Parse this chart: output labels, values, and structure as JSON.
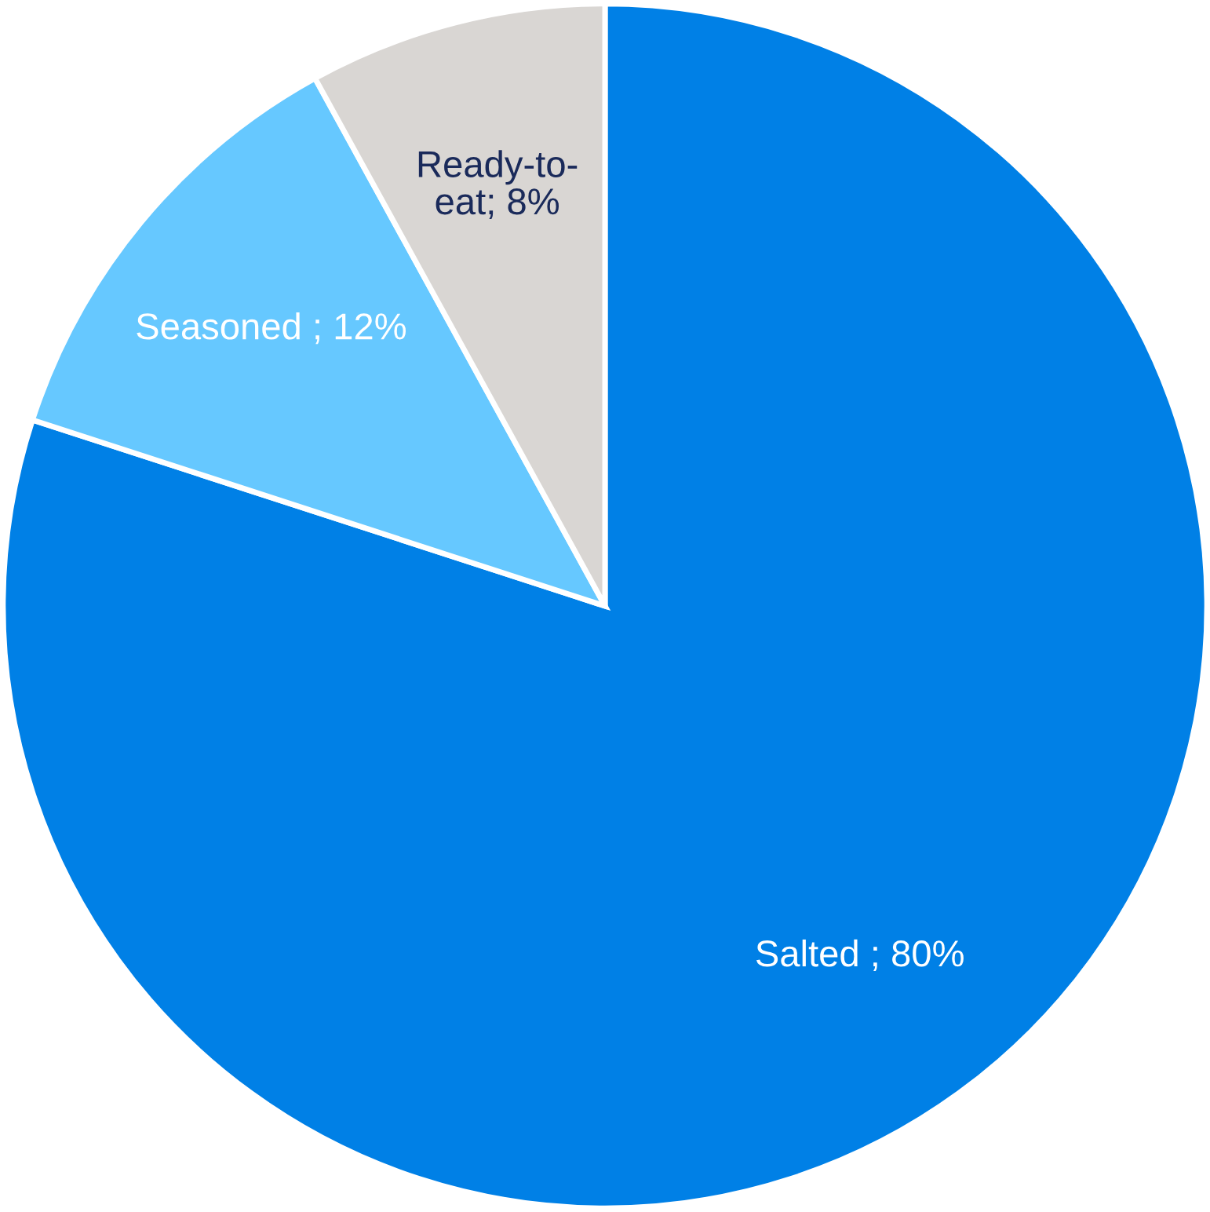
{
  "chart_data": {
    "type": "pie",
    "categories": [
      "Salted",
      "Seasoned",
      "Ready-to-eat"
    ],
    "values": [
      80,
      12,
      8
    ],
    "colors": [
      "#0080e6",
      "#66c8ff",
      "#d9d6d3"
    ],
    "value_labels": [
      " ; 80%",
      " ; 12%",
      "; 8%"
    ],
    "legend": false
  }
}
